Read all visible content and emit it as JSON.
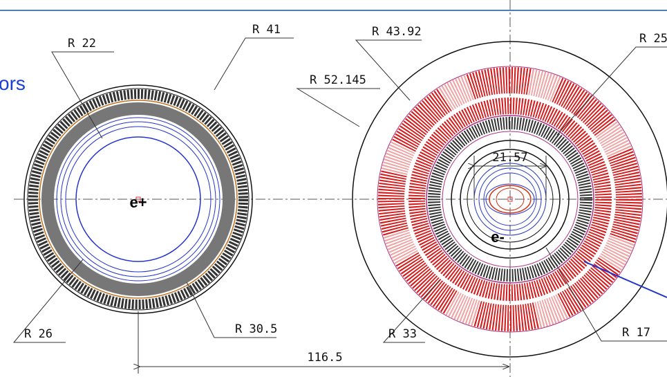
{
  "caption": "ors",
  "left_magnet": {
    "beam": "e+",
    "radii": [
      "R 22",
      "R 41",
      "R 26",
      "R 30.5"
    ]
  },
  "right_magnet": {
    "beam": "e-",
    "radii": [
      "R 43.92",
      "R 52.145",
      "R 25",
      "R 17",
      "R 33"
    ],
    "aperture": "21.57"
  },
  "separation": "116.5"
}
